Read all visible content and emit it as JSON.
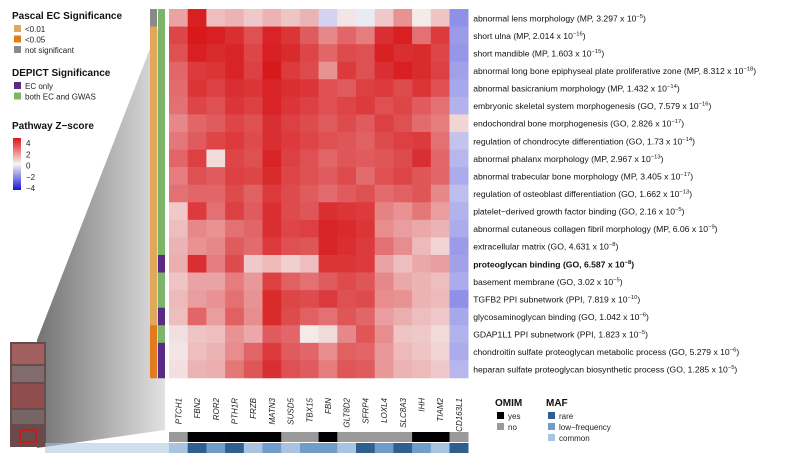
{
  "chart_data": {
    "type": "heatmap",
    "title": "",
    "pascal_legend": {
      "title": "Pascal EC Significance",
      "entries": [
        {
          "label": "<0.01",
          "color": "#e0a95a"
        },
        {
          "label": "<0.05",
          "color": "#e07b1e"
        },
        {
          "label": "not significant",
          "color": "#8a8a8a"
        }
      ]
    },
    "depict_legend": {
      "title": "DEPICT Significance",
      "entries": [
        {
          "label": "EC only",
          "color": "#5b2a86"
        },
        {
          "label": "both EC and GWAS",
          "color": "#7cb46a"
        }
      ]
    },
    "zscore_legend": {
      "title": "Pathway Z−score",
      "ticks": [
        "4",
        "2",
        "0",
        "−2",
        "−4"
      ],
      "range": [
        -4,
        4
      ]
    },
    "omim_legend": {
      "title": "OMIM",
      "entries": [
        {
          "label": "yes",
          "color": "#000000"
        },
        {
          "label": "no",
          "color": "#9a9a9a"
        }
      ]
    },
    "maf_legend": {
      "title": "MAF",
      "entries": [
        {
          "label": "rare",
          "color": "#2f5f8f"
        },
        {
          "label": "low−frequency",
          "color": "#6f9cc8"
        },
        {
          "label": "common",
          "color": "#a9c4e0"
        }
      ]
    },
    "genes": [
      "PTCH1",
      "FBN2",
      "ROR2",
      "PTH1R",
      "FRZB",
      "MATN3",
      "SUSD5",
      "TBX15",
      "FBN",
      "GLT8D2",
      "SFRP4",
      "LOXL4",
      "SLC8A3",
      "IHH",
      "TIAM2",
      "CD163L1"
    ],
    "omim": [
      "no",
      "yes",
      "yes",
      "yes",
      "yes",
      "yes",
      "no",
      "no",
      "yes",
      "no",
      "no",
      "no",
      "no",
      "yes",
      "yes",
      "no"
    ],
    "maf": [
      "common",
      "rare",
      "low",
      "rare",
      "common",
      "low",
      "common",
      "low",
      "low",
      "common",
      "rare",
      "low",
      "rare",
      "low",
      "common",
      "rare"
    ],
    "pathways": [
      {
        "base": "abnormal lens morphology (MP, ",
        "mant": "3.297",
        "exp": "−5",
        "pascal": "not significant",
        "depict": "both EC and GWAS"
      },
      {
        "base": "short ulna (MP, ",
        "mant": "2.014",
        "exp": "−16",
        "pascal": "<0.01",
        "depict": "both EC and GWAS"
      },
      {
        "base": "short mandible (MP, ",
        "mant": "1.603",
        "exp": "−15",
        "pascal": "<0.01",
        "depict": "both EC and GWAS"
      },
      {
        "base": "abnormal long bone epiphyseal plate proliferative zone (MP, ",
        "mant": "8.312",
        "exp": "−18",
        "pascal": "<0.01",
        "depict": "both EC and GWAS"
      },
      {
        "base": "abnormal basicranium morphology (MP, ",
        "mant": "1.432",
        "exp": "−14",
        "pascal": "<0.01",
        "depict": "both EC and GWAS"
      },
      {
        "base": "embryonic skeletal system morphogenesis (GO, ",
        "mant": "7.579",
        "exp": "−16",
        "pascal": "<0.01",
        "depict": "both EC and GWAS"
      },
      {
        "base": "endochondral bone morphogenesis (GO, ",
        "mant": "2.826",
        "exp": "−17",
        "pascal": "<0.01",
        "depict": "both EC and GWAS"
      },
      {
        "base": "regulation of chondrocyte differentiation (GO, ",
        "mant": "1.73",
        "exp": "−14",
        "pascal": "<0.01",
        "depict": "both EC and GWAS"
      },
      {
        "base": "abnormal phalanx morphology (MP, ",
        "mant": "2.967",
        "exp": "−13",
        "pascal": "<0.01",
        "depict": "both EC and GWAS"
      },
      {
        "base": "abnormal trabecular bone morphology (MP, ",
        "mant": "3.405",
        "exp": "−17",
        "pascal": "<0.01",
        "depict": "both EC and GWAS"
      },
      {
        "base": "regulation of osteoblast differentiation (GO, ",
        "mant": "1.662",
        "exp": "−13",
        "pascal": "<0.01",
        "depict": "both EC and GWAS"
      },
      {
        "base": "platelet−derived growth factor binding (GO, ",
        "mant": "2.16",
        "exp": "−5",
        "pascal": "<0.01",
        "depict": "both EC and GWAS"
      },
      {
        "base": "abnormal cutaneous collagen fibril morphology (MP, ",
        "mant": "6.06",
        "exp": "−9",
        "pascal": "<0.01",
        "depict": "both EC and GWAS"
      },
      {
        "base": "extracellular matrix (GO, ",
        "mant": "4.631",
        "exp": "−8",
        "pascal": "<0.01",
        "depict": "both EC and GWAS"
      },
      {
        "base": "proteoglycan binding (GO, ",
        "mant": "6.587",
        "exp": "−8",
        "bold": true,
        "pascal": "<0.01",
        "depict": "EC only"
      },
      {
        "base": "basement membrane (GO, ",
        "mant": "3.02",
        "exp": "−5",
        "pascal": "<0.01",
        "depict": "both EC and GWAS"
      },
      {
        "base": "TGFB2 PPI subnetwork (PPI, ",
        "mant": "7.819",
        "exp": "−10",
        "pascal": "<0.01",
        "depict": "both EC and GWAS"
      },
      {
        "base": "glycosaminoglycan binding (GO, ",
        "mant": "1.042",
        "exp": "−6",
        "pascal": "<0.01",
        "depict": "EC only"
      },
      {
        "base": "GDAP1L1 PPI subnetwork (PPI, ",
        "mant": "1.823",
        "exp": "−5",
        "pascal": "<0.05",
        "depict": "both EC and GWAS"
      },
      {
        "base": "chondroitin sulfate proteoglycan metabolic process (GO, ",
        "mant": "5.279",
        "exp": "−6",
        "pascal": "<0.05",
        "depict": "EC only"
      },
      {
        "base": "heparan sulfate proteoglycan biosynthetic process (GO, ",
        "mant": "1.285",
        "exp": "−5",
        "pascal": "<0.05",
        "depict": "EC only"
      }
    ],
    "z_matrix": [
      [
        1.5,
        3.9,
        1.0,
        1.2,
        0.8,
        1.2,
        0.9,
        1.2,
        -0.6,
        0.3,
        -0.2,
        0.8,
        1.8,
        0.2,
        0.9,
        -1.8
      ],
      [
        3.2,
        4.0,
        3.9,
        3.6,
        3.0,
        3.8,
        3.5,
        2.8,
        2.0,
        2.6,
        2.2,
        3.6,
        3.9,
        2.4,
        3.4,
        -1.6
      ],
      [
        3.0,
        3.9,
        3.7,
        3.8,
        3.2,
        3.9,
        3.7,
        3.2,
        2.6,
        3.1,
        3.0,
        3.9,
        3.6,
        3.7,
        3.2,
        -1.7
      ],
      [
        2.6,
        3.4,
        3.5,
        3.8,
        3.3,
        4.0,
        3.4,
        3.1,
        1.8,
        3.4,
        3.0,
        3.6,
        3.9,
        3.7,
        3.3,
        -1.5
      ],
      [
        2.5,
        3.5,
        3.3,
        3.6,
        3.5,
        3.8,
        3.6,
        3.5,
        3.0,
        2.8,
        3.3,
        3.4,
        3.1,
        3.5,
        3.0,
        -1.4
      ],
      [
        2.4,
        3.2,
        3.0,
        3.5,
        3.3,
        3.8,
        3.5,
        3.3,
        3.0,
        3.2,
        3.4,
        3.0,
        3.2,
        2.8,
        2.4,
        -1.2
      ],
      [
        2.0,
        2.6,
        2.8,
        3.2,
        3.0,
        3.6,
        3.3,
        3.1,
        2.8,
        3.1,
        2.8,
        3.3,
        3.0,
        2.5,
        2.2,
        0.6
      ],
      [
        2.3,
        2.8,
        3.2,
        3.4,
        3.1,
        3.6,
        3.4,
        3.2,
        3.0,
        2.9,
        2.7,
        3.1,
        3.3,
        3.4,
        2.4,
        -0.9
      ],
      [
        2.6,
        3.3,
        0.5,
        3.2,
        3.0,
        3.8,
        3.3,
        3.0,
        2.6,
        2.9,
        2.8,
        2.9,
        3.1,
        3.6,
        2.6,
        -1.1
      ],
      [
        2.2,
        3.0,
        2.8,
        3.3,
        3.2,
        3.7,
        3.2,
        3.0,
        2.8,
        3.1,
        2.5,
        3.0,
        3.2,
        2.9,
        2.6,
        -1.3
      ],
      [
        2.4,
        2.6,
        2.6,
        3.1,
        2.7,
        3.4,
        3.1,
        2.8,
        2.5,
        2.8,
        3.0,
        2.5,
        2.7,
        2.9,
        2.0,
        -1.0
      ],
      [
        0.8,
        3.4,
        2.4,
        3.3,
        2.8,
        3.6,
        3.1,
        2.9,
        3.6,
        3.5,
        3.4,
        2.1,
        1.8,
        2.3,
        1.6,
        -1.2
      ],
      [
        1.0,
        2.0,
        1.8,
        2.4,
        2.6,
        3.6,
        3.2,
        3.3,
        3.8,
        3.7,
        3.5,
        1.9,
        1.6,
        1.4,
        1.2,
        -1.3
      ],
      [
        1.2,
        1.8,
        2.0,
        2.8,
        2.5,
        3.4,
        3.0,
        2.9,
        3.8,
        3.6,
        3.4,
        2.4,
        1.9,
        1.1,
        0.6,
        -1.6
      ],
      [
        1.3,
        3.6,
        2.2,
        3.1,
        0.8,
        1.1,
        0.7,
        1.0,
        3.5,
        3.5,
        3.4,
        1.5,
        1.0,
        1.4,
        1.6,
        -1.5
      ],
      [
        0.9,
        1.5,
        1.5,
        2.2,
        1.7,
        3.3,
        2.7,
        2.4,
        2.8,
        3.1,
        2.9,
        2.0,
        1.4,
        1.2,
        1.0,
        -1.3
      ],
      [
        1.1,
        1.6,
        1.8,
        2.4,
        1.8,
        3.7,
        3.2,
        3.1,
        3.4,
        3.0,
        3.1,
        1.9,
        1.8,
        1.2,
        1.1,
        -1.8
      ],
      [
        1.0,
        2.6,
        1.6,
        2.7,
        1.9,
        3.7,
        3.1,
        2.7,
        2.4,
        2.9,
        2.6,
        1.6,
        1.3,
        1.0,
        0.8,
        -1.4
      ],
      [
        0.4,
        0.9,
        1.0,
        1.8,
        1.4,
        2.8,
        2.6,
        0.2,
        0.5,
        2.0,
        2.9,
        1.9,
        0.9,
        0.8,
        0.5,
        -1.2
      ],
      [
        0.3,
        1.0,
        1.2,
        1.9,
        2.6,
        3.4,
        2.8,
        2.6,
        1.9,
        2.7,
        2.6,
        1.7,
        1.1,
        0.9,
        0.6,
        -1.3
      ],
      [
        0.4,
        1.2,
        1.3,
        2.3,
        2.9,
        3.6,
        3.0,
        2.8,
        2.2,
        2.9,
        2.8,
        1.7,
        1.2,
        1.1,
        0.8,
        -1.1
      ]
    ]
  }
}
